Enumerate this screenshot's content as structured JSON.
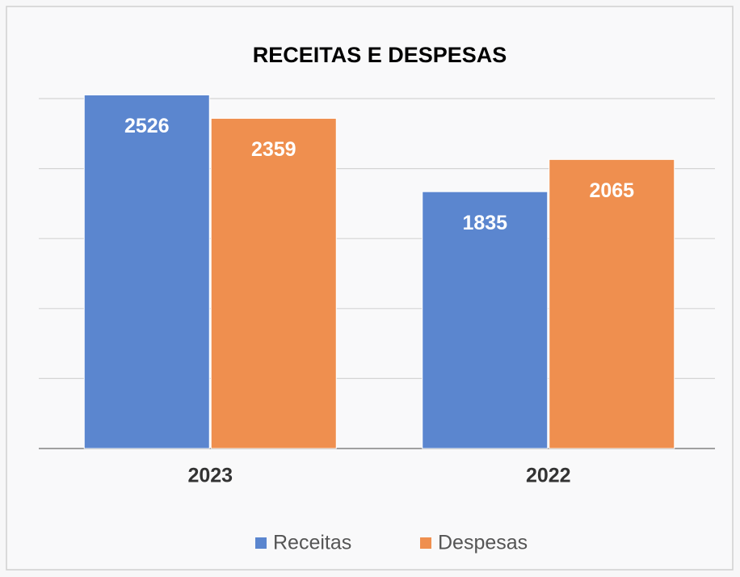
{
  "chart_data": {
    "type": "bar",
    "title": "RECEITAS E DESPESAS",
    "categories": [
      "2023",
      "2022"
    ],
    "series": [
      {
        "name": "Receitas",
        "color": "#5b86cf",
        "values": [
          2526,
          1835
        ]
      },
      {
        "name": "Despesas",
        "color": "#ef8f4f",
        "values": [
          2359,
          2065
        ]
      }
    ],
    "ylim": [
      0,
      2500
    ],
    "yticks": [
      0,
      500,
      1000,
      1500,
      2000,
      2500
    ],
    "grid": true,
    "legend": "bottom"
  }
}
